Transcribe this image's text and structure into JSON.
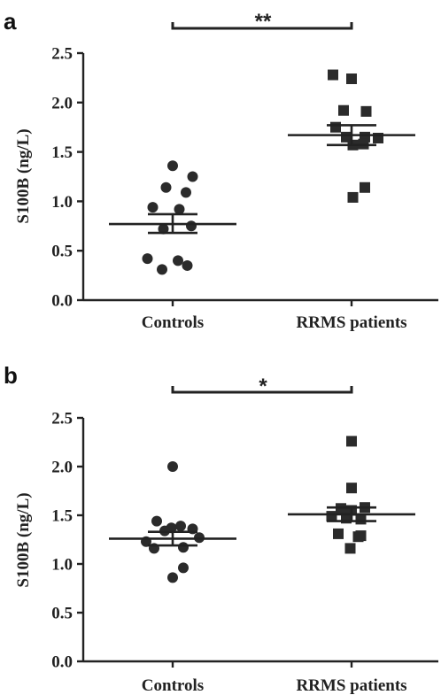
{
  "chart_data": [
    {
      "type": "scatter",
      "panel": "a",
      "ylabel": "S100B (ng/L)",
      "ylim": [
        0,
        2.5
      ],
      "yticks": [
        "0.0",
        "0.5",
        "1.0",
        "1.5",
        "2.0",
        "2.5"
      ],
      "yticks_values": [
        0,
        0.5,
        1.0,
        1.5,
        2.0,
        2.5
      ],
      "categories": [
        "Controls",
        "RRMS patients"
      ],
      "significance": "**",
      "groups": [
        {
          "category": "Controls",
          "marker": "circle",
          "mean": 0.77,
          "sem_low": 0.68,
          "sem_high": 0.87,
          "points": [
            {
              "pos": 0,
              "y": 1.36
            },
            {
              "pos": 0.75,
              "y": 1.25
            },
            {
              "pos": -0.25,
              "y": 1.14
            },
            {
              "pos": 0.5,
              "y": 1.09
            },
            {
              "pos": -0.75,
              "y": 0.94
            },
            {
              "pos": 0.25,
              "y": 0.92
            },
            {
              "pos": 0.7,
              "y": 0.75
            },
            {
              "pos": -0.35,
              "y": 0.72
            },
            {
              "pos": -0.95,
              "y": 0.42
            },
            {
              "pos": 0.2,
              "y": 0.4
            },
            {
              "pos": -0.4,
              "y": 0.31
            },
            {
              "pos": 0.55,
              "y": 0.35
            }
          ]
        },
        {
          "category": "RRMS patients",
          "marker": "square",
          "mean": 1.67,
          "sem_low": 1.57,
          "sem_high": 1.77,
          "points": [
            {
              "pos": -0.7,
              "y": 2.28
            },
            {
              "pos": 0,
              "y": 2.24
            },
            {
              "pos": -0.3,
              "y": 1.92
            },
            {
              "pos": 0.55,
              "y": 1.91
            },
            {
              "pos": -0.6,
              "y": 1.75
            },
            {
              "pos": -0.2,
              "y": 1.65
            },
            {
              "pos": 0.5,
              "y": 1.65
            },
            {
              "pos": 1.0,
              "y": 1.64
            },
            {
              "pos": 0.05,
              "y": 1.57
            },
            {
              "pos": 0.45,
              "y": 1.58
            },
            {
              "pos": 0.5,
              "y": 1.14
            },
            {
              "pos": 0.05,
              "y": 1.04
            }
          ]
        }
      ]
    },
    {
      "type": "scatter",
      "panel": "b",
      "ylabel": "S100B (ng/L)",
      "ylim": [
        0,
        2.5
      ],
      "yticks": [
        "0.0",
        "0.5",
        "1.0",
        "1.5",
        "2.0",
        "2.5"
      ],
      "yticks_values": [
        0,
        0.5,
        1.0,
        1.5,
        2.0,
        2.5
      ],
      "categories": [
        "Controls",
        "RRMS patients"
      ],
      "significance": "*",
      "groups": [
        {
          "category": "Controls",
          "marker": "circle",
          "mean": 1.26,
          "sem_low": 1.19,
          "sem_high": 1.33,
          "points": [
            {
              "pos": 0,
              "y": 2.0
            },
            {
              "pos": -0.6,
              "y": 1.44
            },
            {
              "pos": 0.3,
              "y": 1.39
            },
            {
              "pos": -0.05,
              "y": 1.37
            },
            {
              "pos": 0.75,
              "y": 1.36
            },
            {
              "pos": -0.3,
              "y": 1.34
            },
            {
              "pos": 1.0,
              "y": 1.27
            },
            {
              "pos": -1.0,
              "y": 1.23
            },
            {
              "pos": -0.7,
              "y": 1.16
            },
            {
              "pos": 0.4,
              "y": 1.17
            },
            {
              "pos": 0.4,
              "y": 0.96
            },
            {
              "pos": 0,
              "y": 0.86
            }
          ]
        },
        {
          "category": "RRMS patients",
          "marker": "square",
          "mean": 1.51,
          "sem_low": 1.44,
          "sem_high": 1.58,
          "points": [
            {
              "pos": 0,
              "y": 2.26
            },
            {
              "pos": 0,
              "y": 1.78
            },
            {
              "pos": -0.4,
              "y": 1.57
            },
            {
              "pos": 0.5,
              "y": 1.58
            },
            {
              "pos": 0,
              "y": 1.55
            },
            {
              "pos": -0.75,
              "y": 1.49
            },
            {
              "pos": -0.2,
              "y": 1.47
            },
            {
              "pos": 0.35,
              "y": 1.46
            },
            {
              "pos": -0.5,
              "y": 1.31
            },
            {
              "pos": 0.35,
              "y": 1.29
            },
            {
              "pos": 0.25,
              "y": 1.28
            },
            {
              "pos": -0.05,
              "y": 1.16
            }
          ]
        }
      ]
    }
  ]
}
